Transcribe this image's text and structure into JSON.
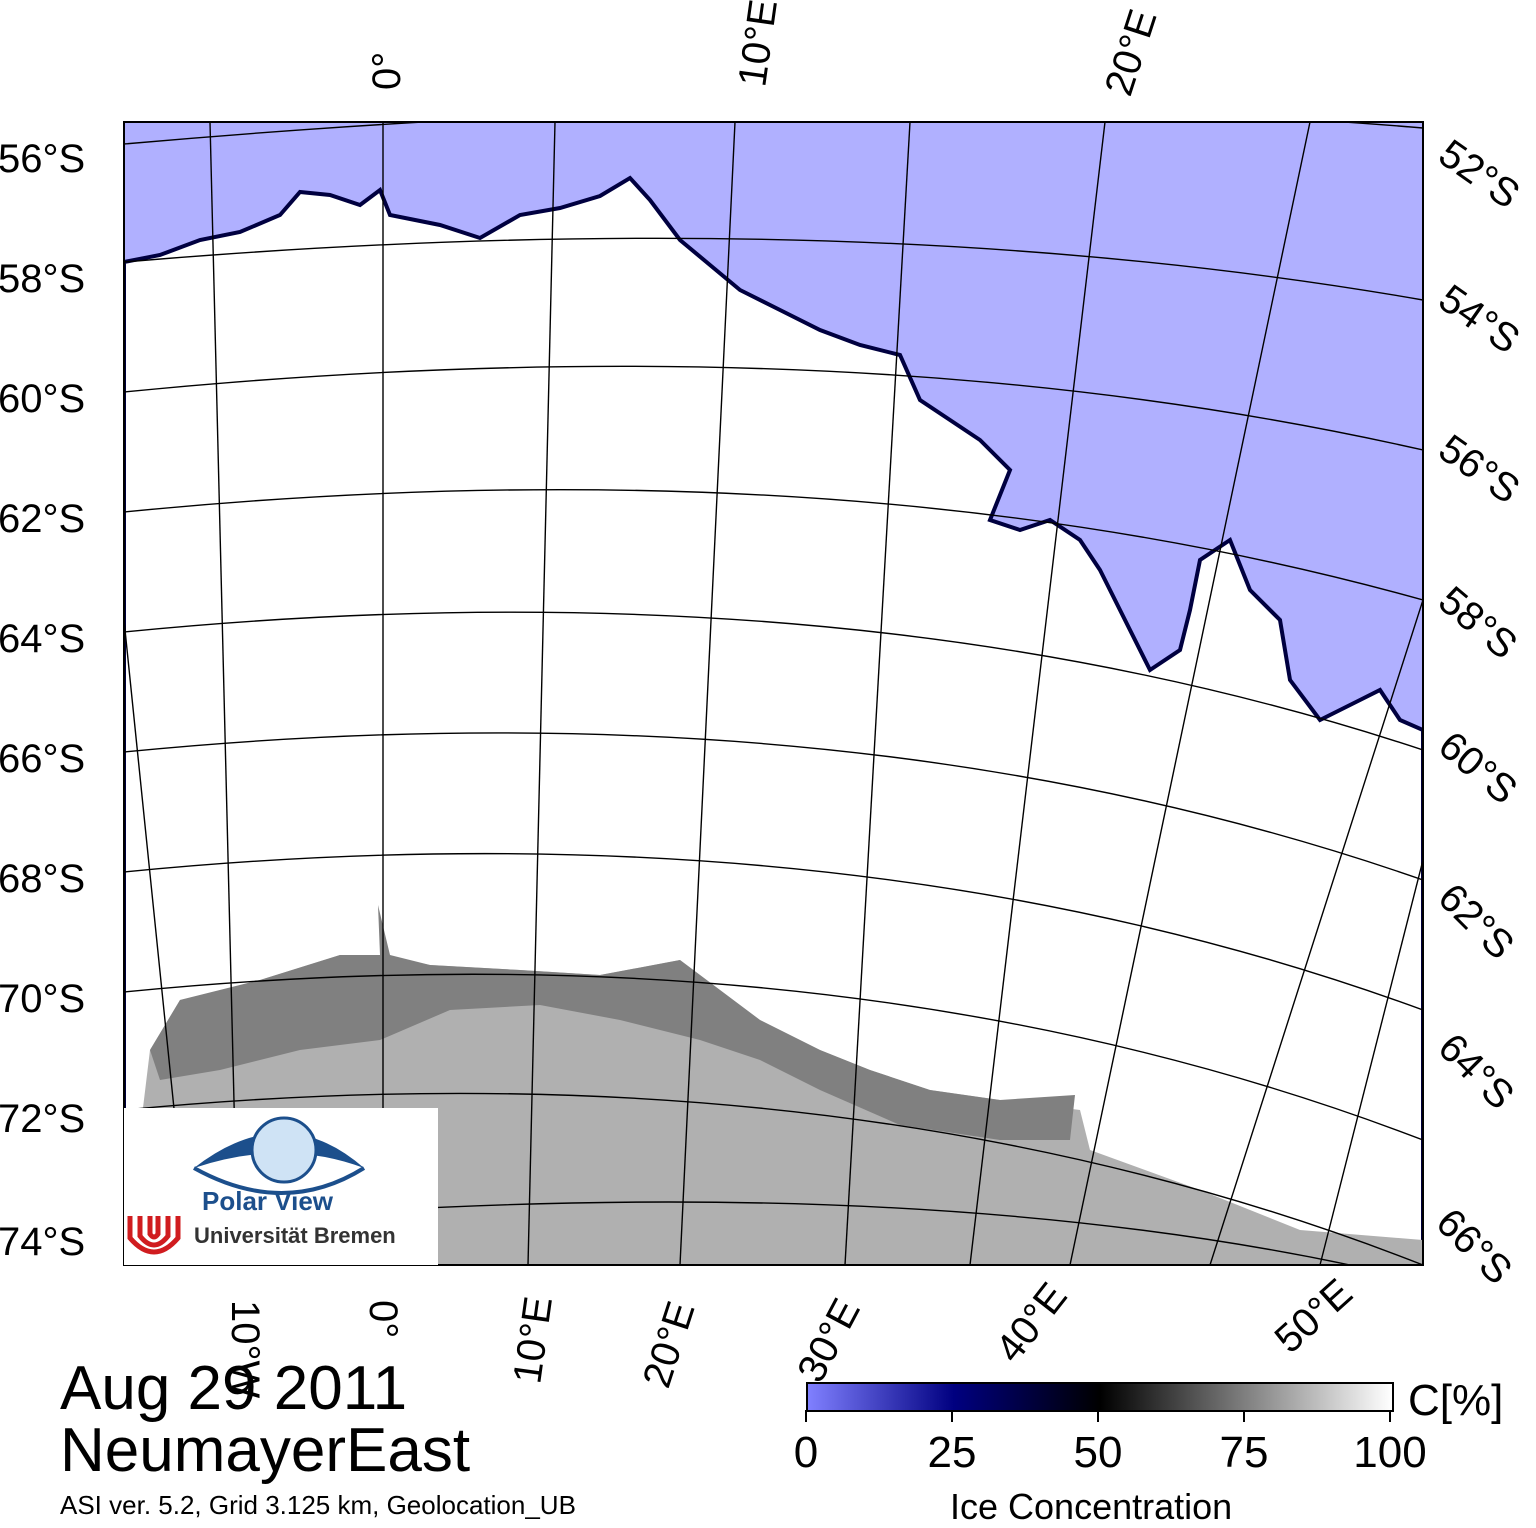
{
  "map": {
    "lat_labels_left": [
      "56°S",
      "58°S",
      "60°S",
      "62°S",
      "64°S",
      "66°S",
      "68°S",
      "70°S",
      "72°S",
      "74°S"
    ],
    "lat_labels_right": [
      "52°S",
      "54°S",
      "56°S",
      "58°S",
      "60°S",
      "62°S",
      "64°S",
      "66°S"
    ],
    "lon_labels_top": [
      "0°",
      "10°E",
      "20°E"
    ],
    "lon_labels_bottom": [
      "10°W",
      "0°",
      "10°E",
      "20°E",
      "30°E",
      "40°E",
      "50°E"
    ],
    "colors": {
      "open_water": "#b0b0ff",
      "sea_ice": "#ffffff",
      "ice_shelf": "#808080",
      "land": "#b0b0b0"
    }
  },
  "logo": {
    "brand": "Polar View",
    "institution": "Universität Bremen",
    "icon": "eye-globe-icon",
    "uni_icon": "bremen-u-icon"
  },
  "header": {
    "date": "Aug 29 2011",
    "region": "NeumayerEast",
    "algorithm_info": "ASI ver. 5.2,  Grid 3.125 km, Geolocation_UB"
  },
  "colorbar": {
    "ticks": [
      "0",
      "25",
      "50",
      "75",
      "100"
    ],
    "unit": "C[%]",
    "title": "Ice Concentration",
    "gradient": [
      "#8080ff",
      "#000080",
      "#000000",
      "#808080",
      "#ffffff"
    ]
  }
}
